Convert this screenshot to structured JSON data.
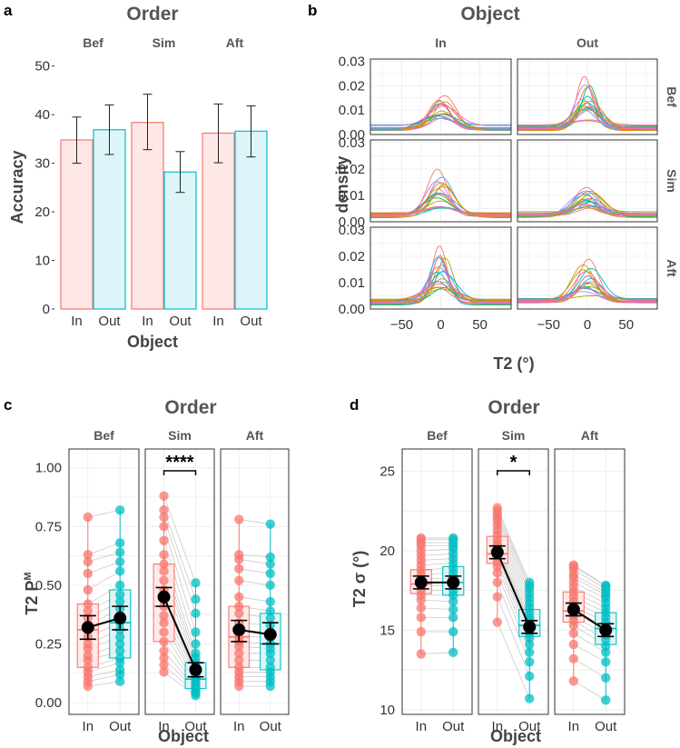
{
  "colors": {
    "in": "#F8766D",
    "out": "#00BFC4",
    "in_fill": "#FDE8E7",
    "out_fill": "#DDF4F8",
    "grid": "#EBEBEB",
    "text": "#555555",
    "mean": "#000000",
    "paired_line": "#BDBDBD"
  },
  "chart_data": [
    {
      "panel": "a",
      "type": "bar",
      "title": "Order",
      "facets": [
        "Bef",
        "Sim",
        "Aft"
      ],
      "categories": [
        "In",
        "Out"
      ],
      "xlabel": "Object",
      "ylabel": "Accuracy",
      "ylim": [
        0,
        52
      ],
      "yticks": [
        0,
        10,
        20,
        30,
        40,
        50
      ],
      "ytick_labels": [
        "0",
        "10",
        "20",
        "30",
        "40",
        "50"
      ],
      "series": [
        {
          "facet": "Bef",
          "in": 34.8,
          "out": 36.9,
          "in_err": [
            30.0,
            39.5
          ],
          "out_err": [
            31.8,
            42.0
          ]
        },
        {
          "facet": "Sim",
          "in": 38.4,
          "out": 28.2,
          "in_err": [
            32.8,
            44.2
          ],
          "out_err": [
            24.0,
            32.4
          ]
        },
        {
          "facet": "Aft",
          "in": 36.2,
          "out": 36.6,
          "in_err": [
            30.1,
            42.2
          ],
          "out_err": [
            31.3,
            41.8
          ]
        }
      ]
    },
    {
      "panel": "b",
      "type": "line",
      "title": "Object",
      "col_facets": [
        "In",
        "Out"
      ],
      "row_facets": [
        "Bef",
        "Sim",
        "Aft"
      ],
      "xlabel": "T2 (°)",
      "ylabel": "density",
      "xlim": [
        -90,
        90
      ],
      "ylim": [
        0,
        0.031
      ],
      "xticks": [
        -50,
        0,
        50
      ],
      "xtick_labels": [
        "−50",
        "0",
        "50"
      ],
      "yticks": [
        0,
        0.01,
        0.02,
        0.03
      ],
      "ytick_labels": [
        "0.00",
        "0.01",
        "0.02",
        "0.03"
      ],
      "curve_colors": [
        "#F8766D",
        "#E58700",
        "#C99800",
        "#A3A500",
        "#6BB100",
        "#00BA38",
        "#00BF7D",
        "#00C0AF",
        "#00BCD8",
        "#00B0F6",
        "#619CFF",
        "#B983FF",
        "#E76BF3",
        "#FD61D1",
        "#FF67A4"
      ],
      "peak_density": [
        [
          0.016,
          0.024
        ],
        [
          0.02,
          0.013
        ],
        [
          0.024,
          0.019
        ]
      ],
      "curves_per_facet": 18
    },
    {
      "panel": "c",
      "type": "box",
      "title": "Order",
      "facets": [
        "Bef",
        "Sim",
        "Aft"
      ],
      "categories": [
        "In",
        "Out"
      ],
      "xlabel": "Object",
      "ylabel_main": "T2 P",
      "ylabel_sup": "M",
      "ylim": [
        -0.05,
        1.08
      ],
      "yticks": [
        0,
        0.25,
        0.5,
        0.75,
        1.0
      ],
      "ytick_labels": [
        "0.00",
        "0.25",
        "0.50",
        "0.75",
        "1.00"
      ],
      "significance": [
        {
          "facet": "Sim",
          "label": "****"
        }
      ],
      "groups": [
        {
          "facet": "Bef",
          "in": {
            "q1": 0.15,
            "median": 0.31,
            "q3": 0.42,
            "mean": 0.32,
            "ci": [
              0.27,
              0.37
            ],
            "points": [
              0.07,
              0.09,
              0.11,
              0.13,
              0.15,
              0.18,
              0.2,
              0.23,
              0.25,
              0.28,
              0.31,
              0.33,
              0.36,
              0.39,
              0.42,
              0.48,
              0.55,
              0.6,
              0.63,
              0.79
            ]
          },
          "out": {
            "q1": 0.19,
            "median": 0.34,
            "q3": 0.48,
            "mean": 0.36,
            "ci": [
              0.31,
              0.41
            ],
            "points": [
              0.09,
              0.12,
              0.14,
              0.17,
              0.19,
              0.22,
              0.25,
              0.28,
              0.31,
              0.34,
              0.37,
              0.4,
              0.43,
              0.46,
              0.5,
              0.56,
              0.6,
              0.64,
              0.68,
              0.82
            ]
          }
        },
        {
          "facet": "Sim",
          "in": {
            "q1": 0.26,
            "median": 0.41,
            "q3": 0.59,
            "mean": 0.45,
            "ci": [
              0.41,
              0.49
            ],
            "points": [
              0.13,
              0.16,
              0.19,
              0.22,
              0.26,
              0.3,
              0.34,
              0.37,
              0.41,
              0.44,
              0.48,
              0.52,
              0.56,
              0.59,
              0.63,
              0.69,
              0.75,
              0.79,
              0.82,
              0.88
            ]
          },
          "out": {
            "q1": 0.06,
            "median": 0.1,
            "q3": 0.17,
            "mean": 0.14,
            "ci": [
              0.11,
              0.17
            ],
            "points": [
              0.03,
              0.04,
              0.05,
              0.06,
              0.07,
              0.08,
              0.09,
              0.1,
              0.11,
              0.12,
              0.13,
              0.15,
              0.17,
              0.19,
              0.21,
              0.25,
              0.3,
              0.38,
              0.44,
              0.51
            ]
          }
        },
        {
          "facet": "Aft",
          "in": {
            "q1": 0.15,
            "median": 0.28,
            "q3": 0.41,
            "mean": 0.31,
            "ci": [
              0.26,
              0.35
            ],
            "points": [
              0.07,
              0.09,
              0.11,
              0.13,
              0.15,
              0.18,
              0.21,
              0.24,
              0.26,
              0.28,
              0.31,
              0.34,
              0.38,
              0.41,
              0.45,
              0.52,
              0.57,
              0.61,
              0.63,
              0.78
            ]
          },
          "out": {
            "q1": 0.14,
            "median": 0.25,
            "q3": 0.38,
            "mean": 0.29,
            "ci": [
              0.25,
              0.34
            ],
            "points": [
              0.07,
              0.09,
              0.11,
              0.13,
              0.15,
              0.18,
              0.21,
              0.23,
              0.25,
              0.28,
              0.3,
              0.33,
              0.36,
              0.39,
              0.43,
              0.5,
              0.55,
              0.59,
              0.62,
              0.76
            ]
          }
        }
      ]
    },
    {
      "panel": "d",
      "type": "box",
      "title": "Order",
      "facets": [
        "Bef",
        "Sim",
        "Aft"
      ],
      "categories": [
        "In",
        "Out"
      ],
      "xlabel": "Object",
      "ylabel_main": "T2 σ (°)",
      "ylabel_sup": "",
      "ylim": [
        9.7,
        26.4
      ],
      "yticks": [
        10,
        15,
        20,
        25
      ],
      "ytick_labels": [
        "10",
        "15",
        "20",
        "25"
      ],
      "significance": [
        {
          "facet": "Sim",
          "label": "*"
        }
      ],
      "groups": [
        {
          "facet": "Bef",
          "in": {
            "q1": 17.3,
            "median": 17.9,
            "q3": 18.8,
            "mean": 18.0,
            "ci": [
              17.6,
              18.4
            ],
            "points": [
              13.5,
              14.9,
              15.8,
              16.4,
              16.9,
              17.2,
              17.5,
              17.8,
              18.0,
              18.2,
              18.5,
              18.8,
              19.1,
              19.4,
              19.7,
              20.0,
              20.3,
              20.5,
              20.7,
              20.8
            ]
          },
          "out": {
            "q1": 17.2,
            "median": 18.0,
            "q3": 19.0,
            "mean": 18.0,
            "ci": [
              17.6,
              18.4
            ],
            "points": [
              13.6,
              14.9,
              15.8,
              16.3,
              16.8,
              17.2,
              17.5,
              17.8,
              18.0,
              18.3,
              18.6,
              18.9,
              19.2,
              19.5,
              19.8,
              20.1,
              20.3,
              20.5,
              20.7,
              20.8
            ]
          }
        },
        {
          "facet": "Sim",
          "in": {
            "q1": 19.2,
            "median": 19.8,
            "q3": 20.9,
            "mean": 19.9,
            "ci": [
              19.5,
              20.3
            ],
            "points": [
              15.5,
              17.1,
              18.0,
              18.6,
              19.0,
              19.3,
              19.6,
              19.8,
              20.0,
              20.2,
              20.4,
              20.7,
              21.0,
              21.3,
              21.6,
              21.9,
              22.1,
              22.3,
              22.5,
              22.7
            ]
          },
          "out": {
            "q1": 14.6,
            "median": 15.3,
            "q3": 16.3,
            "mean": 15.2,
            "ci": [
              14.8,
              15.6
            ],
            "points": [
              10.7,
              12.1,
              13.0,
              13.6,
              14.1,
              14.5,
              14.8,
              15.0,
              15.2,
              15.4,
              15.6,
              15.8,
              16.1,
              16.4,
              16.7,
              17.0,
              17.3,
              17.6,
              17.8,
              18.0
            ]
          }
        },
        {
          "facet": "Aft",
          "in": {
            "q1": 15.5,
            "median": 16.2,
            "q3": 17.4,
            "mean": 16.3,
            "ci": [
              15.9,
              16.7
            ],
            "points": [
              11.8,
              13.2,
              14.1,
              14.8,
              15.3,
              15.6,
              15.9,
              16.1,
              16.3,
              16.5,
              16.8,
              17.1,
              17.4,
              17.7,
              18.0,
              18.3,
              18.5,
              18.8,
              19.0,
              19.1
            ]
          },
          "out": {
            "q1": 14.1,
            "median": 15.1,
            "q3": 16.1,
            "mean": 15.0,
            "ci": [
              14.6,
              15.4
            ],
            "points": [
              10.6,
              12.0,
              13.0,
              13.6,
              14.0,
              14.4,
              14.7,
              15.0,
              15.2,
              15.5,
              15.8,
              16.1,
              16.4,
              16.7,
              17.0,
              17.2,
              17.4,
              17.6,
              17.8,
              17.8
            ]
          }
        }
      ]
    }
  ]
}
